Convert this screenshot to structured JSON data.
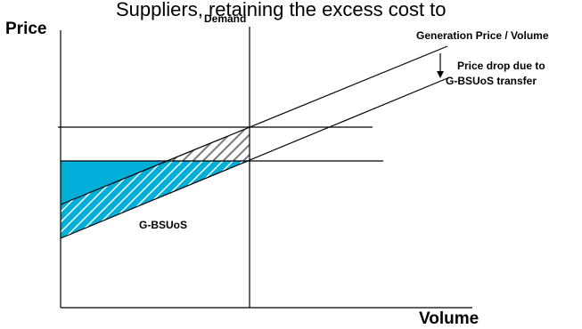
{
  "header_fragment": "Suppliers, retaining the excess cost to",
  "axis": {
    "y_label": "Price",
    "x_label": "Volume"
  },
  "demand_label": "Demand",
  "generation_label": "Generation Price / Volume",
  "price_drop_label_line1": "Price drop due to",
  "price_drop_label_line2": "G-BSUoS transfer",
  "gbsuos_label": "G-BSUoS",
  "colors": {
    "cyan": "#00AEDA",
    "line": "#000000",
    "hatch_gray": "#8a8a8a"
  }
}
